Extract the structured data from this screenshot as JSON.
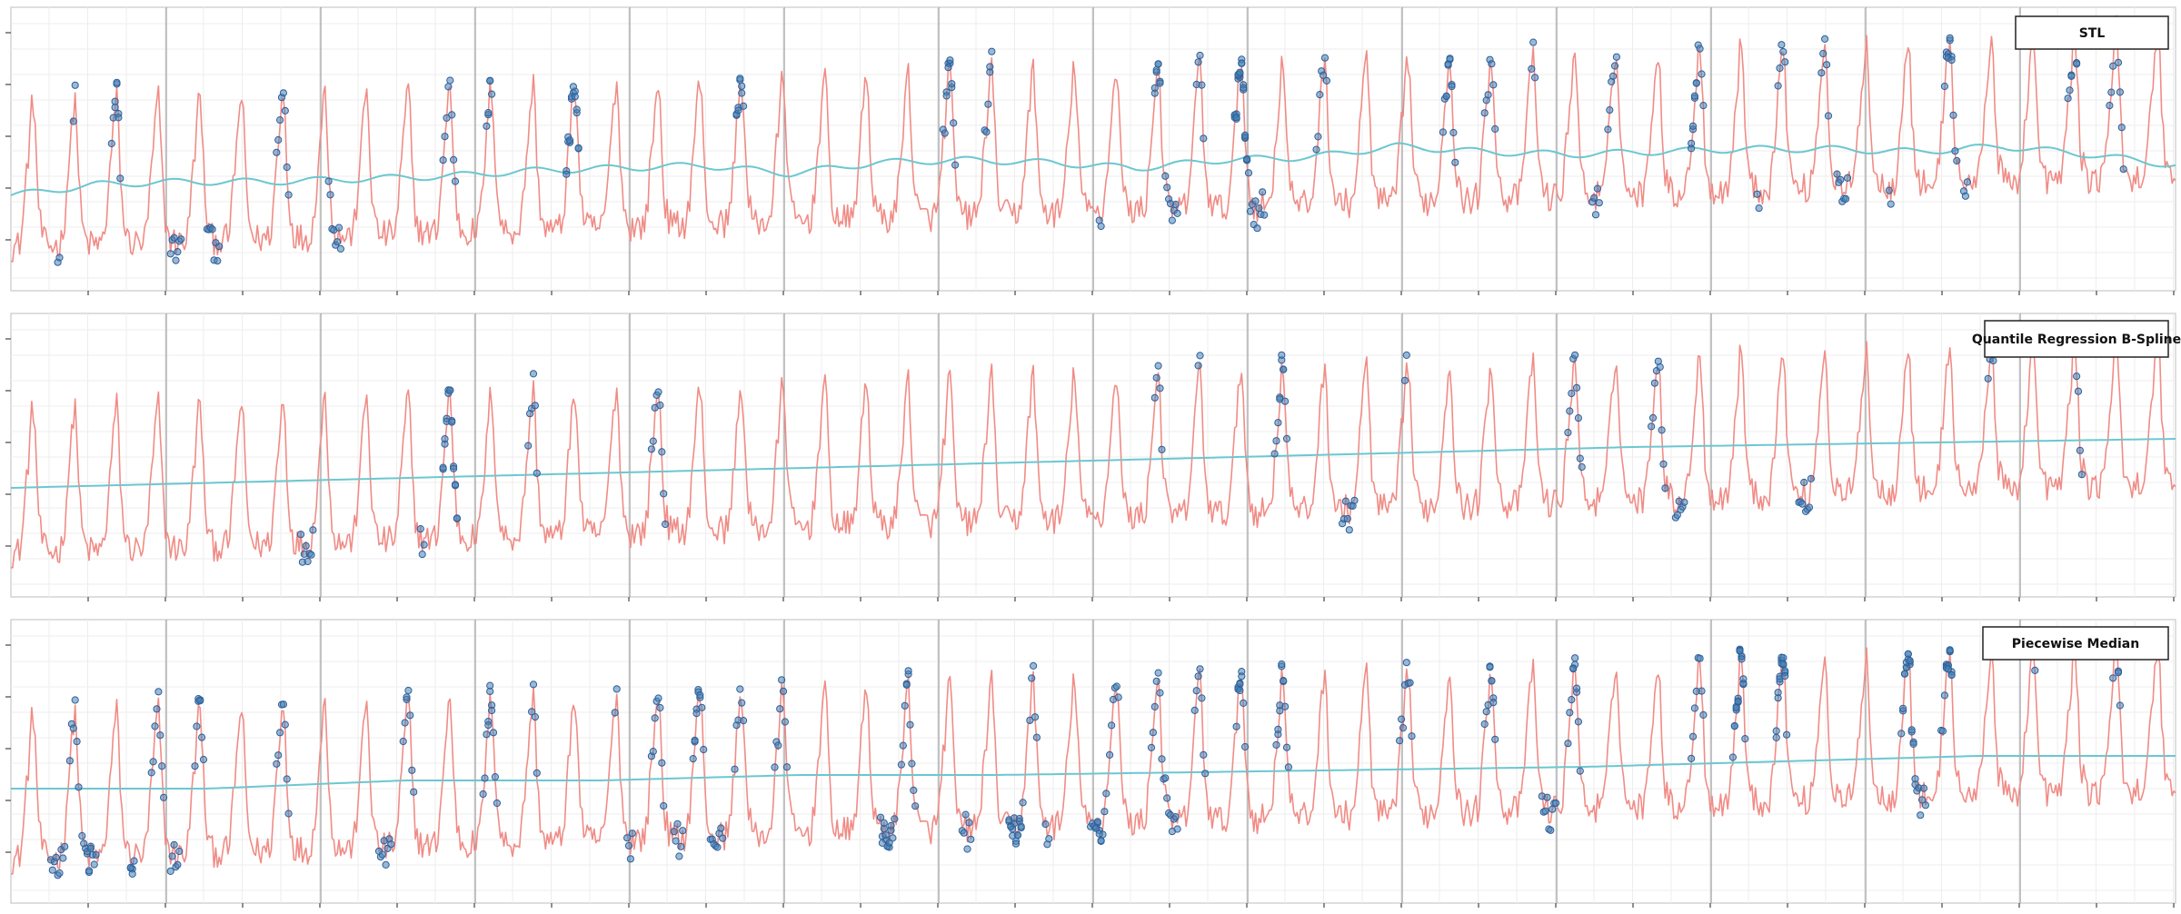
{
  "colors": {
    "series": "#f08c86",
    "trend": "#6cc7cf",
    "anomaly_fill": "#4682b4",
    "anomaly_edge": "#2f5f9a",
    "grid_minor": "#ededed",
    "grid_major": "#9a9a9a",
    "frame": "#bdbdbd"
  },
  "chart_data": [
    {
      "type": "line",
      "legend_label": "STL",
      "legend_position": "top-right",
      "series": [
        {
          "role": "observed",
          "periods": 52,
          "samples_per_period": 24,
          "base_start": -0.3,
          "base_end": 1.0,
          "amplitude": 1.2
        },
        {
          "role": "trend",
          "values": [
            -0.55,
            -0.35,
            -0.3,
            -0.3,
            -0.25,
            -0.2,
            -0.1,
            -0.05,
            0.0,
            -0.15,
            0.05,
            0.1,
            0.05,
            -0.05,
            0.1,
            0.15,
            0.35,
            0.25,
            0.2,
            0.25,
            0.3,
            0.3,
            0.25,
            0.35,
            0.2,
            0.0
          ]
        },
        {
          "role": "anomalies",
          "count": 48
        }
      ],
      "ylim": [
        -2.3,
        2.9
      ],
      "grid": true
    },
    {
      "type": "line",
      "legend_label": "Quantile Regression B-Spline",
      "legend_position": "top-right",
      "series": [
        {
          "role": "observed",
          "periods": 52,
          "samples_per_period": 24,
          "base_start": -0.3,
          "base_end": 1.0,
          "amplitude": 1.2
        },
        {
          "role": "trend",
          "values": [
            -0.3,
            -0.05,
            0.2,
            0.45,
            0.6
          ]
        },
        {
          "role": "anomalies",
          "count": 18
        }
      ],
      "ylim": [
        -2.3,
        2.9
      ],
      "grid": true
    },
    {
      "type": "line",
      "legend_label": "Piecewise Median",
      "legend_position": "top-right",
      "series": [
        {
          "role": "observed",
          "periods": 52,
          "samples_per_period": 24,
          "base_start": -0.3,
          "base_end": 1.0,
          "amplitude": 1.2
        },
        {
          "role": "trend",
          "values": [
            -0.2,
            -0.2,
            -0.05,
            -0.05,
            0.05,
            0.05,
            0.1,
            0.15,
            0.2,
            0.3,
            0.4,
            0.4
          ]
        },
        {
          "role": "anomalies",
          "count": 70
        }
      ],
      "ylim": [
        -2.3,
        2.9
      ],
      "grid": true
    }
  ]
}
